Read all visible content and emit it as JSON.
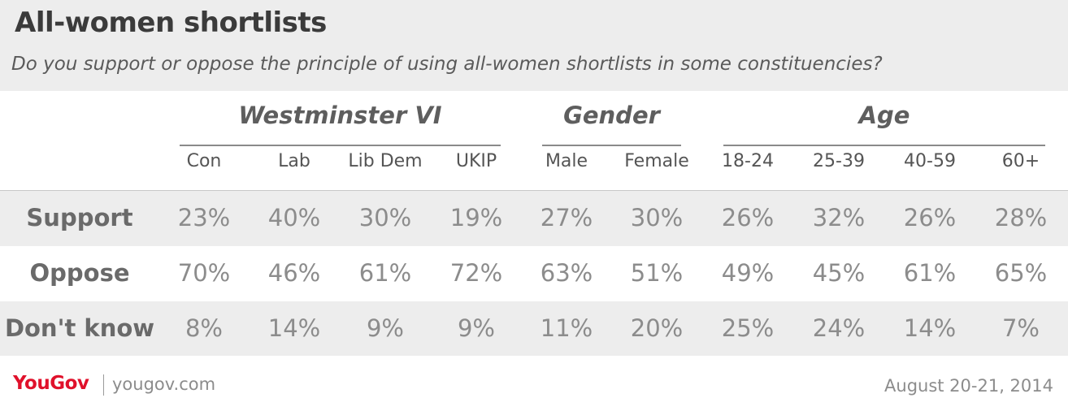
{
  "title": "All-women shortlists",
  "subtitle": "Do you support or oppose the principle of using all-women shortlists in some constituencies?",
  "chart_data": {
    "type": "table",
    "groups": [
      {
        "label": "Westminster VI",
        "columns": [
          "Con",
          "Lab",
          "Lib Dem",
          "UKIP"
        ]
      },
      {
        "label": "Gender",
        "columns": [
          "Male",
          "Female"
        ]
      },
      {
        "label": "Age",
        "columns": [
          "18-24",
          "25-39",
          "40-59",
          "60+"
        ]
      }
    ],
    "columns": [
      "Con",
      "Lab",
      "Lib Dem",
      "UKIP",
      "Male",
      "Female",
      "18-24",
      "25-39",
      "40-59",
      "60+"
    ],
    "rows": [
      {
        "label": "Support",
        "values": [
          "23%",
          "40%",
          "30%",
          "19%",
          "27%",
          "30%",
          "26%",
          "32%",
          "26%",
          "28%"
        ]
      },
      {
        "label": "Oppose",
        "values": [
          "70%",
          "46%",
          "61%",
          "72%",
          "63%",
          "51%",
          "49%",
          "45%",
          "61%",
          "65%"
        ]
      },
      {
        "label": "Don't know",
        "values": [
          "8%",
          "14%",
          "9%",
          "9%",
          "11%",
          "20%",
          "25%",
          "24%",
          "14%",
          "7%"
        ]
      }
    ]
  },
  "footer": {
    "brand": "YouGov",
    "url": "yougov.com",
    "date": "August 20-21, 2014"
  },
  "colors": {
    "brand_red": "#e0112b",
    "band_grey": "#ededed"
  }
}
